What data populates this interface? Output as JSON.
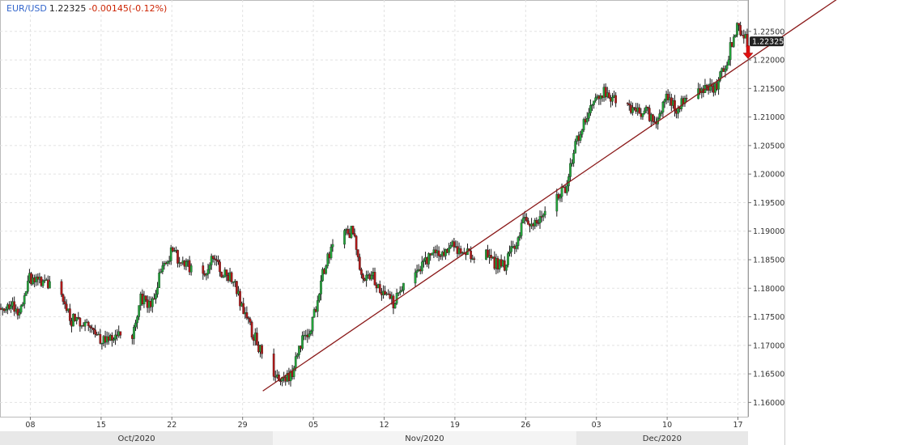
{
  "header": {
    "symbol": "EUR/USD",
    "last": "1.22325",
    "change": "-0.00145(-0.12%)"
  },
  "colors": {
    "up": "#22a33a",
    "down": "#b01818",
    "trendline": "#8b1a1a",
    "grid": "#e2e2e2",
    "signal_arrow": "#e01010",
    "last_label_bg": "#222222"
  },
  "chart_data": {
    "type": "candlestick",
    "xaxis": {
      "type": "date",
      "range": [
        "2020-10-05",
        "2020-12-18"
      ]
    },
    "ylim": [
      1.1575,
      1.2305
    ],
    "yticks": [
      "1.16000",
      "1.16500",
      "1.17000",
      "1.17500",
      "1.18000",
      "1.18500",
      "1.19000",
      "1.19500",
      "1.20000",
      "1.20500",
      "1.21000",
      "1.21500",
      "1.22000",
      "1.22500"
    ],
    "xticks": [
      {
        "date": "2020-10-08",
        "label": "08"
      },
      {
        "date": "2020-10-15",
        "label": "15"
      },
      {
        "date": "2020-10-22",
        "label": "22"
      },
      {
        "date": "2020-10-29",
        "label": "29"
      },
      {
        "date": "2020-11-05",
        "label": "05"
      },
      {
        "date": "2020-11-12",
        "label": "12"
      },
      {
        "date": "2020-11-19",
        "label": "19"
      },
      {
        "date": "2020-11-26",
        "label": "26"
      },
      {
        "date": "2020-12-03",
        "label": "03"
      },
      {
        "date": "2020-12-10",
        "label": "10"
      },
      {
        "date": "2020-12-17",
        "label": "17"
      }
    ],
    "months": [
      {
        "label": "Oct/2020",
        "start": "2020-10-05",
        "end": "2020-11-01"
      },
      {
        "label": "Nov/2020",
        "start": "2020-11-01",
        "end": "2020-12-01"
      },
      {
        "label": "Dec/2020",
        "start": "2020-12-01",
        "end": "2020-12-18"
      }
    ],
    "last_price": "1.22325",
    "last_value": 1.22325,
    "trendline": [
      {
        "date": "2020-10-31",
        "value": 1.162
      },
      {
        "date": "2020-12-18",
        "value": 1.22
      }
    ],
    "signal": {
      "type": "down-arrow",
      "date": "2020-12-18",
      "value": 1.2205
    },
    "price_path": [
      [
        "2020-10-05",
        1.1765
      ],
      [
        "2020-10-06",
        1.1772
      ],
      [
        "2020-10-07",
        1.176
      ],
      [
        "2020-10-08",
        1.1818
      ],
      [
        "2020-10-09",
        1.181
      ],
      [
        "2020-10-11",
        1.1802
      ],
      [
        "2020-10-12",
        1.1745
      ],
      [
        "2020-10-13",
        1.1742
      ],
      [
        "2020-10-14",
        1.174
      ],
      [
        "2020-10-15",
        1.171
      ],
      [
        "2020-10-16",
        1.1712
      ],
      [
        "2020-10-17",
        1.172
      ],
      [
        "2020-10-18",
        1.171
      ],
      [
        "2020-10-19",
        1.178
      ],
      [
        "2020-10-20",
        1.177
      ],
      [
        "2020-10-21",
        1.183
      ],
      [
        "2020-10-22",
        1.1862
      ],
      [
        "2020-10-23",
        1.185
      ],
      [
        "2020-10-24",
        1.1835
      ],
      [
        "2020-10-25",
        1.181
      ],
      [
        "2020-10-26",
        1.1858
      ],
      [
        "2020-10-27",
        1.183
      ],
      [
        "2020-10-28",
        1.182
      ],
      [
        "2020-10-29",
        1.177
      ],
      [
        "2020-10-30",
        1.1725
      ],
      [
        "2020-10-31",
        1.1685
      ],
      [
        "2020-11-01",
        1.1645
      ],
      [
        "2020-11-02",
        1.164
      ],
      [
        "2020-11-03",
        1.165
      ],
      [
        "2020-11-04",
        1.171
      ],
      [
        "2020-11-05",
        1.174
      ],
      [
        "2020-11-06",
        1.183
      ],
      [
        "2020-11-07",
        1.187
      ],
      [
        "2020-11-08",
        1.1895
      ],
      [
        "2020-11-09",
        1.19
      ],
      [
        "2020-11-10",
        1.1815
      ],
      [
        "2020-11-11",
        1.1818
      ],
      [
        "2020-11-12",
        1.179
      ],
      [
        "2020-11-13",
        1.1775
      ],
      [
        "2020-11-14",
        1.18
      ],
      [
        "2020-11-15",
        1.1815
      ],
      [
        "2020-11-16",
        1.1845
      ],
      [
        "2020-11-17",
        1.1858
      ],
      [
        "2020-11-18",
        1.1862
      ],
      [
        "2020-11-19",
        1.1875
      ],
      [
        "2020-11-20",
        1.1862
      ],
      [
        "2020-11-21",
        1.1855
      ],
      [
        "2020-11-22",
        1.187
      ],
      [
        "2020-11-23",
        1.1845
      ],
      [
        "2020-11-24",
        1.184
      ],
      [
        "2020-11-25",
        1.1875
      ],
      [
        "2020-11-26",
        1.192
      ],
      [
        "2020-11-27",
        1.1915
      ],
      [
        "2020-11-28",
        1.1935
      ],
      [
        "2020-11-29",
        1.1955
      ],
      [
        "2020-11-30",
        1.1975
      ],
      [
        "2020-12-01",
        1.205
      ],
      [
        "2020-12-02",
        1.21
      ],
      [
        "2020-12-03",
        1.214
      ],
      [
        "2020-12-04",
        1.2145
      ],
      [
        "2020-12-05",
        1.213
      ],
      [
        "2020-12-06",
        1.2118
      ],
      [
        "2020-12-07",
        1.2112
      ],
      [
        "2020-12-08",
        1.211
      ],
      [
        "2020-12-09",
        1.2085
      ],
      [
        "2020-12-10",
        1.214
      ],
      [
        "2020-12-11",
        1.211
      ],
      [
        "2020-12-12",
        1.2135
      ],
      [
        "2020-12-13",
        1.215
      ],
      [
        "2020-12-14",
        1.215
      ],
      [
        "2020-12-15",
        1.2155
      ],
      [
        "2020-12-16",
        1.22
      ],
      [
        "2020-12-17",
        1.226
      ],
      [
        "2020-12-18",
        1.2232
      ]
    ]
  }
}
